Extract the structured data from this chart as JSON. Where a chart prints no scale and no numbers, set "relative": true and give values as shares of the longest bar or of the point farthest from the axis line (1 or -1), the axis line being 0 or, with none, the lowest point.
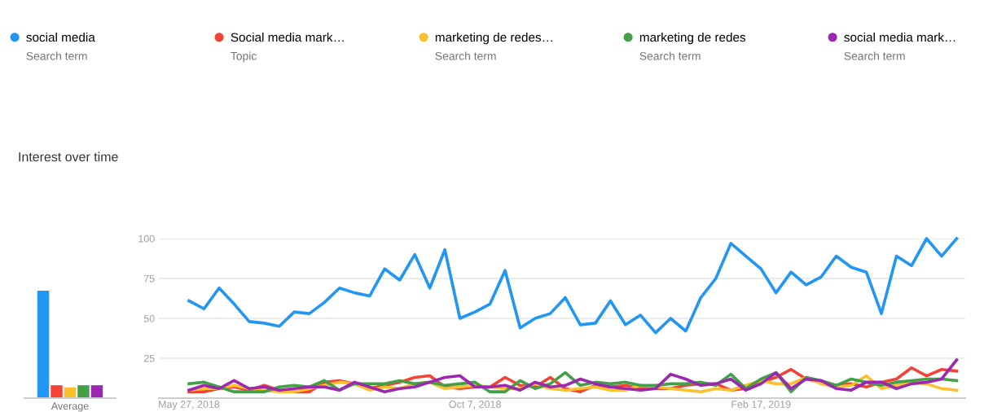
{
  "chart_data": [
    {
      "type": "bar",
      "relative": true,
      "xlabel": "Average",
      "categories": [
        null,
        null,
        null,
        null,
        null
      ],
      "values": [
        1,
        0.12,
        0.1,
        0.12,
        0.12
      ],
      "colors": [
        "#2196f3",
        "#f44336",
        "#fbc02d",
        "#43a047",
        "#9c27b0"
      ]
    },
    {
      "type": "line",
      "title": "Interest over time",
      "legend": "top",
      "grid": "y",
      "annotations": [
        "Search term",
        "Topic",
        "Search term",
        "Search term",
        "Search term"
      ],
      "x": [
        "2018-05-27",
        "2018-06-03",
        "2018-06-10",
        "2018-06-17",
        "2018-06-24",
        "2018-07-01",
        "2018-07-08",
        "2018-07-15",
        "2018-07-22",
        "2018-07-29",
        "2018-08-05",
        "2018-08-12",
        "2018-08-19",
        "2018-08-26",
        "2018-09-02",
        "2018-09-09",
        "2018-09-16",
        "2018-09-23",
        "2018-09-30",
        "2018-10-07",
        "2018-10-14",
        "2018-10-21",
        "2018-10-28",
        "2018-11-04",
        "2018-11-11",
        "2018-11-18",
        "2018-11-25",
        "2018-12-02",
        "2018-12-09",
        "2018-12-16",
        "2018-12-23",
        "2018-12-30",
        "2019-01-06",
        "2019-01-13",
        "2019-01-20",
        "2019-01-27",
        "2019-02-03",
        "2019-02-10",
        "2019-02-17",
        "2019-02-24",
        "2019-03-03",
        "2019-03-10",
        "2019-03-17",
        "2019-03-24",
        "2019-03-31",
        "2019-04-07",
        "2019-04-14",
        "2019-04-21",
        "2019-04-28",
        "2019-05-05",
        "2019-05-12",
        "2019-05-19"
      ],
      "xlim": [
        "2018-05-13",
        "2019-05-23"
      ],
      "xticks": [
        {
          "value": "2018-05-27",
          "label": "May 27, 2018"
        },
        {
          "value": "2018-10-07",
          "label": "Oct 7, 2018"
        },
        {
          "value": "2019-02-17",
          "label": "Feb 17, 2019"
        }
      ],
      "ylim": [
        0,
        100
      ],
      "yticks": [
        25,
        50,
        75,
        100
      ],
      "series": [
        {
          "name": "social media",
          "color": "#2196f3",
          "values": [
            61,
            56,
            69,
            59,
            48,
            47,
            45,
            54,
            53,
            60,
            69,
            66,
            64,
            81,
            74,
            90,
            69,
            93,
            50,
            54,
            59,
            80,
            44,
            50,
            53,
            63,
            46,
            47,
            61,
            46,
            52,
            41,
            50,
            42,
            63,
            75,
            97,
            89,
            81,
            66,
            79,
            71,
            76,
            89,
            82,
            79,
            53,
            89,
            83,
            100,
            89,
            100
          ]
        },
        {
          "name": "Social media mark…",
          "color": "#f44336",
          "values": [
            4,
            4,
            6,
            7,
            5,
            8,
            5,
            4,
            4,
            10,
            11,
            9,
            6,
            8,
            10,
            13,
            14,
            7,
            6,
            7,
            7,
            13,
            8,
            7,
            13,
            6,
            4,
            8,
            7,
            8,
            6,
            6,
            6,
            8,
            9,
            9,
            5,
            6,
            10,
            13,
            18,
            12,
            10,
            8,
            9,
            7,
            10,
            12,
            19,
            14,
            18,
            17
          ]
        },
        {
          "name": "marketing de redes…",
          "color": "#fbc02d",
          "values": [
            5,
            6,
            6,
            8,
            6,
            5,
            4,
            4,
            6,
            8,
            10,
            9,
            5,
            7,
            6,
            9,
            10,
            6,
            7,
            8,
            7,
            6,
            6,
            9,
            6,
            5,
            6,
            7,
            5,
            5,
            8,
            7,
            6,
            5,
            4,
            6,
            5,
            8,
            11,
            9,
            9,
            13,
            9,
            7,
            8,
            14,
            6,
            8,
            10,
            9,
            6,
            5
          ]
        },
        {
          "name": "marketing de redes",
          "color": "#43a047",
          "values": [
            9,
            10,
            7,
            4,
            4,
            4,
            7,
            8,
            7,
            11,
            5,
            9,
            9,
            9,
            11,
            9,
            10,
            8,
            9,
            10,
            4,
            4,
            11,
            6,
            9,
            16,
            8,
            10,
            9,
            10,
            8,
            8,
            9,
            9,
            10,
            8,
            15,
            6,
            12,
            16,
            4,
            13,
            11,
            8,
            12,
            10,
            8,
            10,
            11,
            12,
            12,
            11
          ]
        },
        {
          "name": "social media mark…",
          "color": "#9c27b0",
          "values": [
            5,
            8,
            6,
            11,
            6,
            7,
            5,
            6,
            7,
            7,
            5,
            10,
            7,
            4,
            6,
            7,
            10,
            13,
            14,
            7,
            7,
            8,
            5,
            10,
            7,
            8,
            12,
            9,
            7,
            6,
            5,
            6,
            15,
            12,
            8,
            9,
            12,
            5,
            9,
            16,
            6,
            12,
            11,
            6,
            5,
            10,
            10,
            6,
            9,
            10,
            12,
            24
          ]
        }
      ]
    }
  ]
}
